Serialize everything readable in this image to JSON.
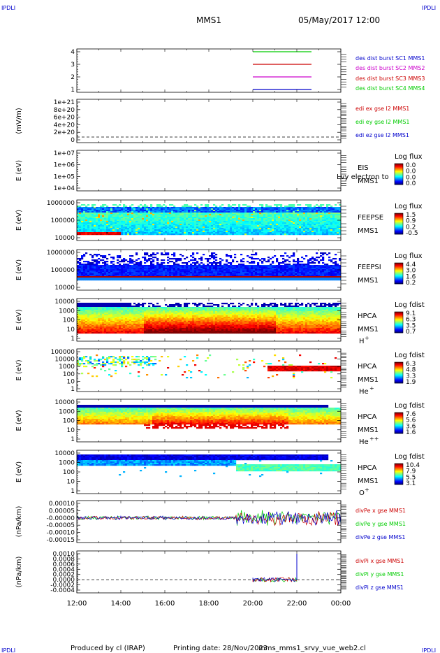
{
  "header": {
    "corner_tl": "IPDLI",
    "corner_tr": "IPDLI",
    "corner_bl": "IPDLI",
    "corner_br": "IPDLI",
    "title": "MMS1",
    "date": "05/May/2017 12:00"
  },
  "footer": {
    "produced": "Produced by cl (IRAP)",
    "printing": "Printing date: 28/Nov/2023",
    "file": "mms_mms1_srvy_vue_web2.cl"
  },
  "colors": {
    "blue": "#0000cc",
    "green": "#00cc00",
    "red": "#cc0000",
    "magenta": "#cc00cc"
  },
  "chart_data": [
    {
      "type": "line",
      "title": "",
      "xlabel": "",
      "ylabel": "",
      "yticks": [
        "4",
        "3",
        "2",
        "1"
      ],
      "ylim": [
        0.5,
        4.5
      ],
      "series": [
        {
          "name": "des dist burst SC1 MMS1",
          "color": "blue",
          "y": 1,
          "x": [
            "20:00",
            "22:40"
          ]
        },
        {
          "name": "des dist burst SC2 MMS2",
          "color": "magenta",
          "y": 2,
          "x": [
            "20:00",
            "22:40"
          ]
        },
        {
          "name": "des dist burst SC3 MMS3",
          "color": "red",
          "y": 3,
          "x": [
            "20:00",
            "22:40"
          ]
        },
        {
          "name": "des dist burst SC4 MMS4",
          "color": "green",
          "y": 4,
          "x": [
            "20:00",
            "22:40"
          ]
        }
      ]
    },
    {
      "type": "line",
      "ylabel": "(mV/m)",
      "yticks": [
        "1e+21",
        "8e+20",
        "6e+20",
        "4e+20",
        "2e+20",
        "0"
      ],
      "series": [
        {
          "name": "edi ex gse l2 MMS1",
          "color": "red"
        },
        {
          "name": "edi ey gse l2 MMS1",
          "color": "green"
        },
        {
          "name": "edi ez gse l2 MMS1",
          "color": "blue"
        }
      ]
    },
    {
      "type": "heatmap",
      "ylabel": "E (eV)",
      "yticks": [
        "1e+07",
        "1e+06",
        "1e+05",
        "1e+04"
      ],
      "instrument": "EIS",
      "overlay": "Lvy electron to",
      "spacecraft": "MMS1",
      "cbar_title": "Log flux",
      "cbar_ticks": [
        "0.0",
        "0.0",
        "0.0",
        "0.0"
      ]
    },
    {
      "type": "heatmap",
      "ylabel": "E (eV)",
      "yticks": [
        "1000000",
        "100000",
        "10000"
      ],
      "instrument": "FEEPSE",
      "spacecraft": "MMS1",
      "cbar_title": "Log flux",
      "cbar_ticks": [
        "1.5",
        "0.9",
        "0.2",
        "-0.5"
      ]
    },
    {
      "type": "heatmap",
      "ylabel": "E (eV)",
      "yticks": [
        "1000000",
        "100000",
        "10000"
      ],
      "instrument": "FEEPSI",
      "spacecraft": "MMS1",
      "cbar_title": "Log flux",
      "cbar_ticks": [
        "4.4",
        "3.0",
        "1.6",
        "0.2"
      ]
    },
    {
      "type": "heatmap",
      "ylabel": "E (eV)",
      "yticks": [
        "10000",
        "1000",
        "100",
        "10",
        "1"
      ],
      "instrument": "HPCA",
      "spacecraft": "MMS1",
      "species": "H",
      "charge": "+",
      "cbar_title": "Log fdist",
      "cbar_ticks": [
        "9.1",
        "6.3",
        "3.5",
        "0.7"
      ]
    },
    {
      "type": "heatmap",
      "ylabel": "E (eV)",
      "yticks": [
        "100000",
        "10000",
        "1000",
        "100",
        "10",
        "1"
      ],
      "instrument": "HPCA",
      "spacecraft": "MMS1",
      "species": "He",
      "charge": "+",
      "cbar_title": "Log fdist",
      "cbar_ticks": [
        "6.3",
        "4.8",
        "3.3",
        "1.9"
      ]
    },
    {
      "type": "heatmap",
      "ylabel": "E (eV)",
      "yticks": [
        "10000",
        "1000",
        "100",
        "10",
        "1"
      ],
      "instrument": "HPCA",
      "spacecraft": "MMS1",
      "species": "He",
      "charge": "++",
      "cbar_title": "Log fdist",
      "cbar_ticks": [
        "7.6",
        "5.6",
        "3.6",
        "1.6"
      ]
    },
    {
      "type": "heatmap",
      "ylabel": "E (eV)",
      "yticks": [
        "10000",
        "1000",
        "100",
        "10",
        "1"
      ],
      "instrument": "HPCA",
      "spacecraft": "MMS1",
      "species": "O",
      "charge": "+",
      "cbar_title": "Log fdist",
      "cbar_ticks": [
        "10.4",
        "7.9",
        "5.5",
        "3.1"
      ]
    },
    {
      "type": "line",
      "ylabel": "(nPa/km)",
      "yticks": [
        "0.00010",
        "0.00005",
        "-0.00000",
        "-0.00005",
        "-0.00010",
        "-0.00015"
      ],
      "ylim": [
        -0.00017,
        0.00012
      ],
      "series": [
        {
          "name": "divPe x gse MMS1",
          "color": "red"
        },
        {
          "name": "divPe y gse MMS1",
          "color": "green"
        },
        {
          "name": "divPe z gse MMS1",
          "color": "blue"
        }
      ]
    },
    {
      "type": "line",
      "ylabel": "(nPa/km)",
      "yticks": [
        "0.0010",
        "0.0008",
        "0.0006",
        "0.0004",
        "0.0002",
        "0.0000",
        "-0.0002",
        "-0.0004"
      ],
      "ylim": [
        -0.00045,
        0.001
      ],
      "x_range": [
        "20:00",
        "22:00"
      ],
      "series": [
        {
          "name": "divPi x gse MMS1",
          "color": "red"
        },
        {
          "name": "divPi y gse MMS1",
          "color": "green"
        },
        {
          "name": "divPi z gse MMS1",
          "color": "blue"
        }
      ]
    }
  ],
  "x_axis": {
    "ticks": [
      "12:00",
      "14:00",
      "16:00",
      "18:00",
      "20:00",
      "22:00",
      "00:00"
    ]
  }
}
